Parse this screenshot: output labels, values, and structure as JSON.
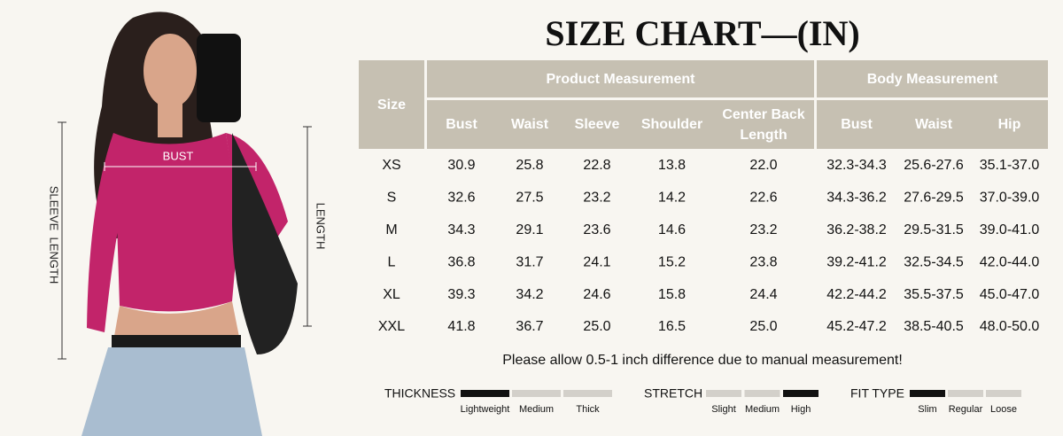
{
  "title": "SIZE CHART—(IN)",
  "photo": {
    "bust_label": "BUST",
    "length_label": "LENGTH",
    "sleeve_label": "SLEEVE  LENGTH"
  },
  "table": {
    "size_header": "Size",
    "groups": [
      {
        "label": "Product Measurement",
        "columns": [
          "Bust",
          "Waist",
          "Sleeve",
          "Shoulder",
          "Center Back Length"
        ]
      },
      {
        "label": "Body Measurement",
        "columns": [
          "Bust",
          "Waist",
          "Hip"
        ]
      }
    ],
    "rows": [
      [
        "XS",
        "30.9",
        "25.8",
        "22.8",
        "13.8",
        "22.0",
        "32.3-34.3",
        "25.6-27.6",
        "35.1-37.0"
      ],
      [
        "S",
        "32.6",
        "27.5",
        "23.2",
        "14.2",
        "22.6",
        "34.3-36.2",
        "27.6-29.5",
        "37.0-39.0"
      ],
      [
        "M",
        "34.3",
        "29.1",
        "23.6",
        "14.6",
        "23.2",
        "36.2-38.2",
        "29.5-31.5",
        "39.0-41.0"
      ],
      [
        "L",
        "36.8",
        "31.7",
        "24.1",
        "15.2",
        "23.8",
        "39.2-41.2",
        "32.5-34.5",
        "42.0-44.0"
      ],
      [
        "XL",
        "39.3",
        "34.2",
        "24.6",
        "15.8",
        "24.4",
        "42.2-44.2",
        "35.5-37.5",
        "45.0-47.0"
      ],
      [
        "XXL",
        "41.8",
        "36.7",
        "25.0",
        "16.5",
        "25.0",
        "45.2-47.2",
        "38.5-40.5",
        "48.0-50.0"
      ]
    ]
  },
  "note": "Please allow 0.5-1 inch difference due to manual measurement!",
  "scales": [
    {
      "label": "THICKNESS",
      "options": [
        "Lightweight",
        "Medium",
        "Thick"
      ],
      "selected": 0
    },
    {
      "label": "STRETCH",
      "options": [
        "Slight",
        "Medium",
        "High"
      ],
      "selected": 2
    },
    {
      "label": "FIT TYPE",
      "options": [
        "Slim",
        "Regular",
        "Loose"
      ],
      "selected": 0
    }
  ]
}
